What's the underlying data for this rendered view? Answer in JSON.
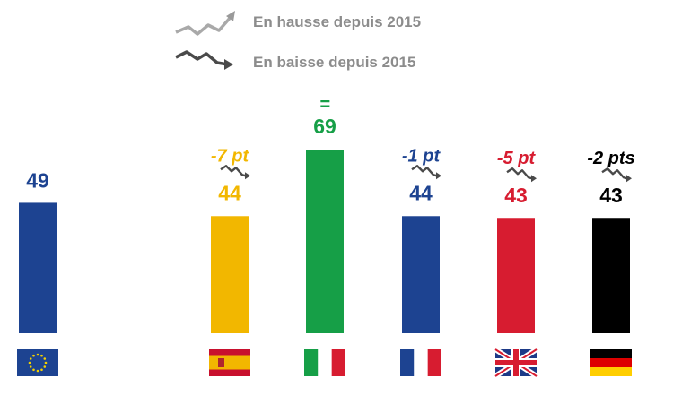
{
  "legend": {
    "up_label": "En hausse depuis 2015",
    "down_label": "En baisse depuis 2015",
    "up_icon": "trend-up-icon",
    "down_icon": "trend-down-icon",
    "icon_color": "#8c8c8c"
  },
  "chart_data": {
    "type": "bar",
    "title": "",
    "xlabel": "",
    "ylabel": "",
    "ylim": [
      0,
      100
    ],
    "grid": false,
    "categories": [
      "Union européenne",
      "Espagne",
      "Italie",
      "France",
      "Royaume-Uni",
      "Allemagne"
    ],
    "values": [
      49,
      44,
      69,
      44,
      43,
      43
    ],
    "value_labels": [
      "49",
      "44",
      "69",
      "44",
      "43",
      "43"
    ],
    "change_labels": [
      "",
      "-7  pt",
      "=",
      "-1 pt",
      "-5 pt",
      "-2 pts"
    ],
    "trend": [
      "",
      "down",
      "none",
      "down",
      "down",
      "down"
    ],
    "flags": [
      "eu-flag-icon",
      "spain-flag-icon",
      "italy-flag-icon",
      "france-flag-icon",
      "uk-flag-icon",
      "germany-flag-icon"
    ],
    "colors": [
      "#1d4391",
      "#f2b700",
      "#169f47",
      "#1d4391",
      "#d71c30",
      "#000000"
    ]
  }
}
